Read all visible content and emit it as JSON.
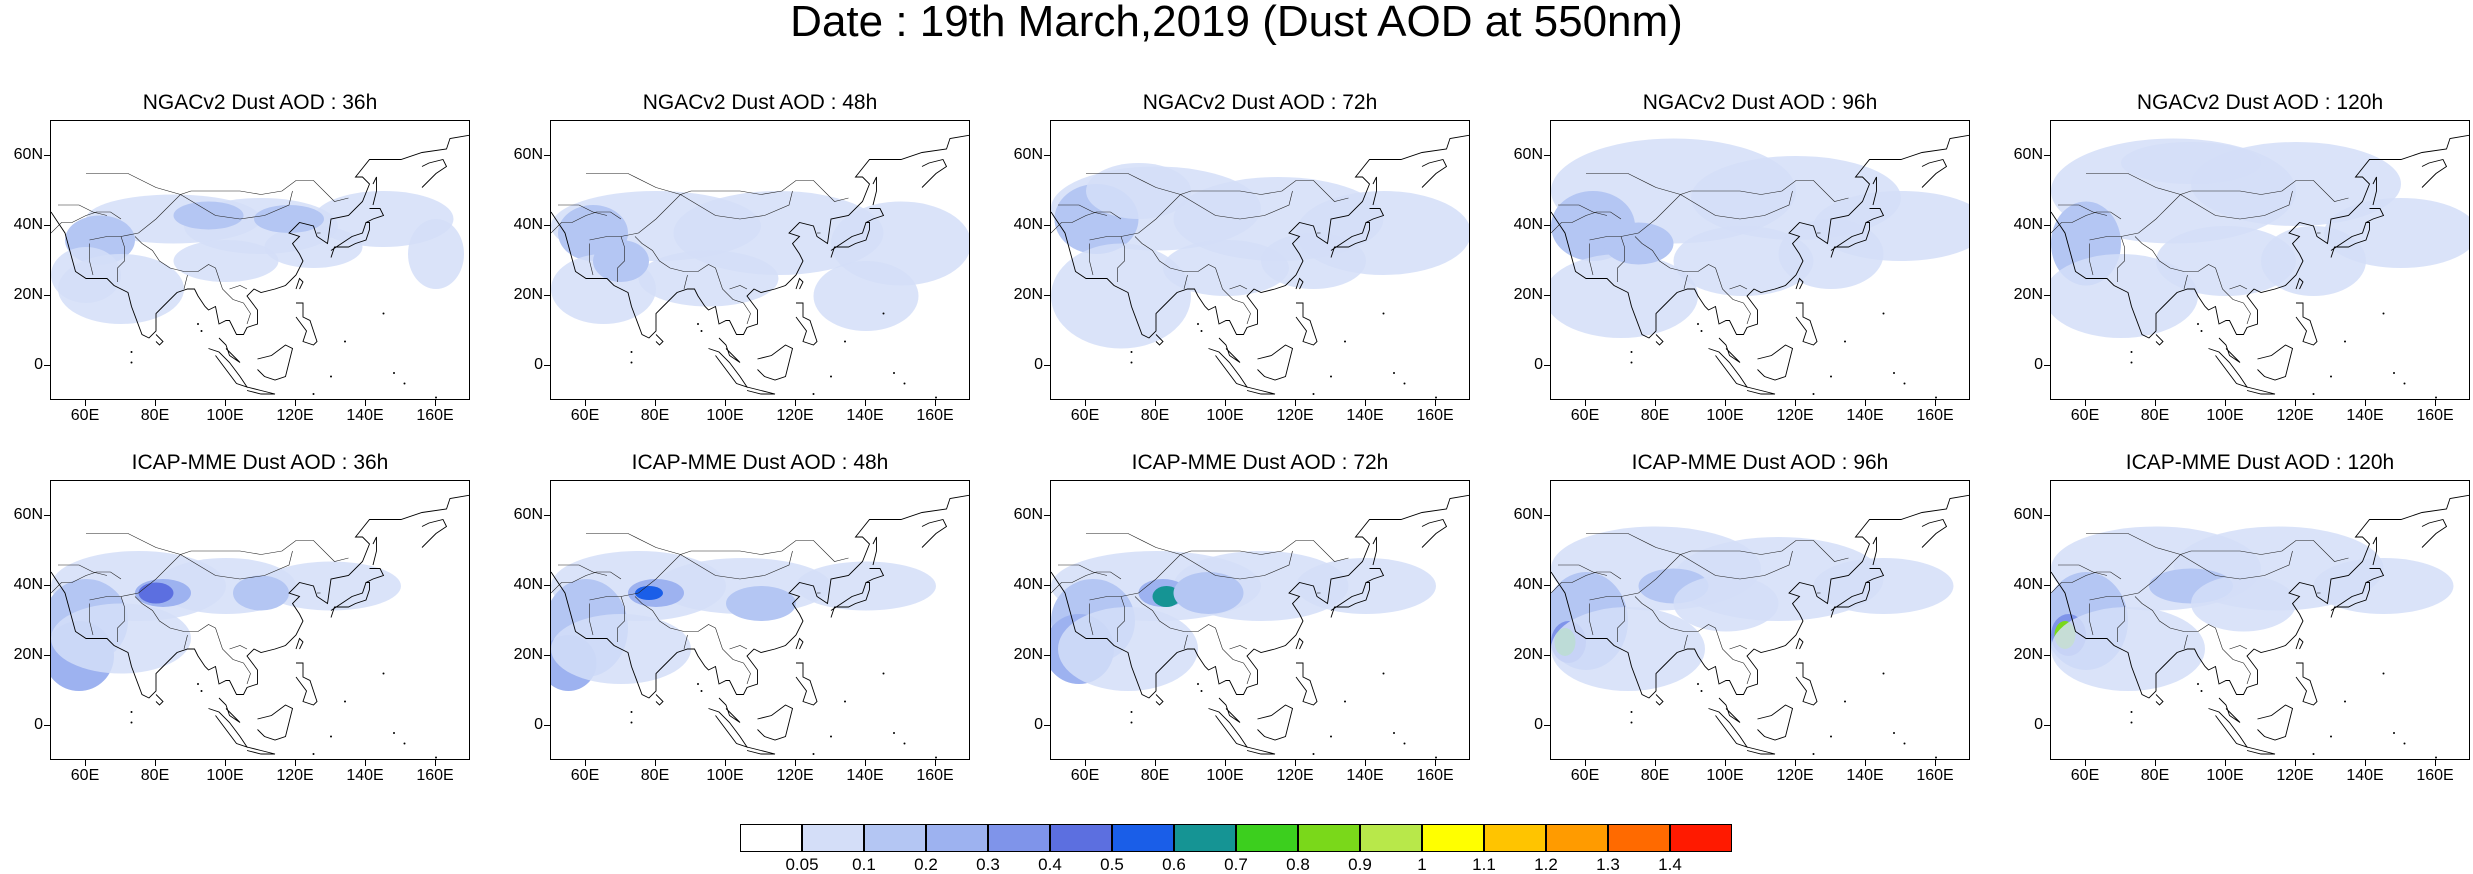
{
  "title": "Date : 19th March,2019 (Dust AOD at 550nm)",
  "lat_labels": [
    "60N",
    "40N",
    "20N",
    "0"
  ],
  "lat_values": [
    60,
    40,
    20,
    0
  ],
  "lon_labels": [
    "60E",
    "80E",
    "100E",
    "120E",
    "140E",
    "160E"
  ],
  "lon_values": [
    60,
    80,
    100,
    120,
    140,
    160
  ],
  "map_extent": {
    "lon_min": 50,
    "lon_max": 170,
    "lat_min": -10,
    "lat_max": 70
  },
  "rows": [
    {
      "model": "NGACv2",
      "panels": [
        {
          "title": "NGACv2 Dust AOD : 36h",
          "lead_hours": 36
        },
        {
          "title": "NGACv2 Dust AOD : 48h",
          "lead_hours": 48
        },
        {
          "title": "NGACv2 Dust AOD : 72h",
          "lead_hours": 72
        },
        {
          "title": "NGACv2 Dust AOD : 96h",
          "lead_hours": 96
        },
        {
          "title": "NGACv2 Dust AOD : 120h",
          "lead_hours": 120
        }
      ]
    },
    {
      "model": "ICAP-MME",
      "panels": [
        {
          "title": "ICAP-MME Dust AOD : 36h",
          "lead_hours": 36
        },
        {
          "title": "ICAP-MME Dust AOD : 48h",
          "lead_hours": 48
        },
        {
          "title": "ICAP-MME Dust AOD : 72h",
          "lead_hours": 72
        },
        {
          "title": "ICAP-MME Dust AOD : 96h",
          "lead_hours": 96
        },
        {
          "title": "ICAP-MME Dust AOD : 120h",
          "lead_hours": 120
        }
      ]
    }
  ],
  "colorbar": {
    "labels": [
      "0.05",
      "0.1",
      "0.2",
      "0.3",
      "0.4",
      "0.5",
      "0.6",
      "0.7",
      "0.8",
      "0.9",
      "1",
      "1.1",
      "1.2",
      "1.3",
      "1.4"
    ],
    "colors": [
      "#ffffff",
      "#d4def8",
      "#b4c6f3",
      "#9db2f0",
      "#7f94ea",
      "#5c6fe0",
      "#1a5ee8",
      "#159494",
      "#3ccf1e",
      "#7ad81a",
      "#b8e84a",
      "#ffff00",
      "#ffc400",
      "#ff9b00",
      "#ff6a00",
      "#ff1a00"
    ]
  }
}
